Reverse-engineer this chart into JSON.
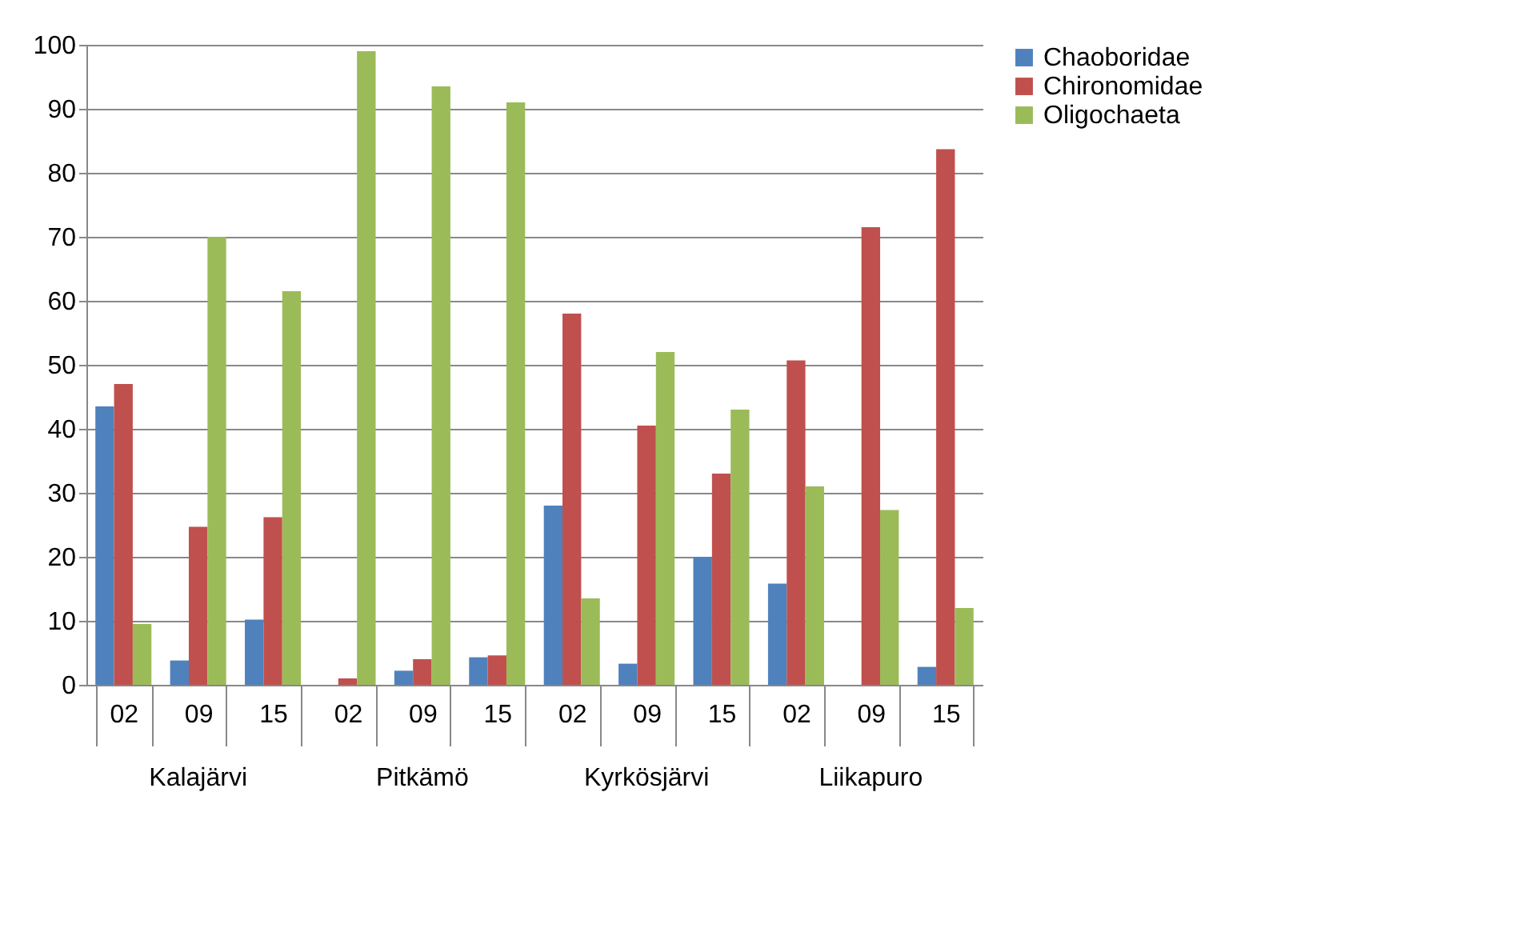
{
  "chart_data": {
    "type": "bar",
    "categories": [
      "02",
      "09",
      "15",
      "02",
      "09",
      "15",
      "02",
      "09",
      "15",
      "02",
      "09",
      "15"
    ],
    "annotations": [
      "Kalajärvi",
      "Pitkämö",
      "Kyrkösjärvi",
      "Liikapuro"
    ],
    "series": [
      {
        "name": "Chaoboridae",
        "color": "#4f81bd",
        "values": [
          43.5,
          3.8,
          10.2,
          null,
          2.2,
          4.3,
          28,
          3.3,
          20,
          15.8,
          null,
          2.8
        ]
      },
      {
        "name": "Chironomidae",
        "color": "#c0504d",
        "values": [
          47,
          24.7,
          26.2,
          1,
          4,
          4.6,
          58,
          40.5,
          33,
          50.7,
          71.5,
          83.7
        ]
      },
      {
        "name": "Oligochaeta",
        "color": "#9bbb59",
        "values": [
          9.5,
          70,
          61.5,
          99,
          93.5,
          91,
          13.5,
          52,
          43,
          31,
          27.3,
          12
        ]
      }
    ],
    "ylim": [
      0,
      100
    ],
    "yticks": [
      0,
      10,
      20,
      30,
      40,
      50,
      60,
      70,
      80,
      90,
      100
    ],
    "grid": "y",
    "legend": "right"
  }
}
